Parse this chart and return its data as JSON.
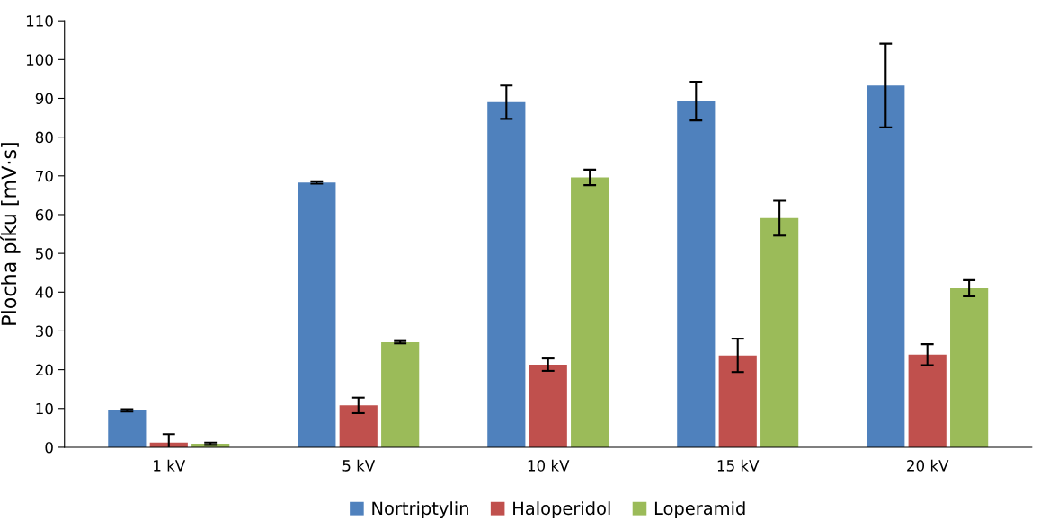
{
  "chart_data": {
    "type": "bar",
    "ylabel": "Plocha píku [mV·s]",
    "categories": [
      "1 kV",
      "5 kV",
      "10 kV",
      "15 kV",
      "20 kV"
    ],
    "series": [
      {
        "name": "Nortriptylin",
        "color": "#4f81bd",
        "values": [
          9.5,
          68.3,
          89.0,
          89.3,
          93.3
        ],
        "errors": [
          0.3,
          0.3,
          4.3,
          5.0,
          10.8
        ]
      },
      {
        "name": "Haloperidol",
        "color": "#c0504d",
        "values": [
          1.2,
          10.8,
          21.3,
          23.7,
          23.9
        ],
        "errors": [
          2.2,
          2.0,
          1.6,
          4.3,
          2.7
        ]
      },
      {
        "name": "Loperamid",
        "color": "#9bbb59",
        "values": [
          0.9,
          27.1,
          69.6,
          59.1,
          41.0
        ],
        "errors": [
          0.3,
          0.3,
          2.0,
          4.5,
          2.1
        ]
      }
    ],
    "ylim": [
      0,
      110
    ],
    "yticks": [
      0,
      10,
      20,
      30,
      40,
      50,
      60,
      70,
      80,
      90,
      100,
      110
    ],
    "grid": false,
    "legend": "bottom"
  }
}
